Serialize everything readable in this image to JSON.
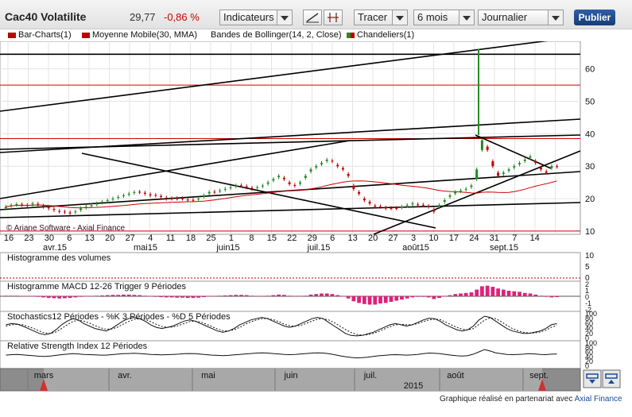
{
  "toolbar": {
    "title": "Cac40 Volatilite",
    "price": "29,77",
    "change": "-0,86 %",
    "indicators_label": "Indicateurs",
    "draw_label": "Tracer",
    "period_value": "6 mois",
    "frequency_value": "Journalier",
    "publish_label": "Publier",
    "line_tool_icon": "trend-line-icon",
    "bracket_tool_icon": "fork-tool-icon"
  },
  "legend": {
    "items": [
      {
        "label": "Bar-Charts(1)",
        "color": "#c00000"
      },
      {
        "label": "Moyenne Mobile(30, MMA)",
        "color": "#c00000"
      },
      {
        "label": "Bandes de Bollinger(14, 2, Close)",
        "color": ""
      },
      {
        "label": "Chandeliers(1)",
        "color": "#2a8a2a"
      }
    ]
  },
  "chart_data": [
    {
      "type": "bar",
      "panel": "main",
      "y_ticks": [
        "10",
        "20",
        "30",
        "40",
        "50",
        "60"
      ],
      "ylim": [
        9,
        68
      ],
      "x_ticks": [
        "16",
        "23",
        "30",
        "6",
        "13",
        "20",
        "27",
        "4",
        "11",
        "18",
        "25",
        "1",
        "8",
        "15",
        "22",
        "29",
        "6",
        "13",
        "20",
        "27",
        "3",
        "10",
        "17",
        "24",
        "31",
        "7",
        "14"
      ],
      "month_labels": [
        "avr.15",
        "mai15",
        "juin15",
        "juil.15",
        "août15",
        "sept.15"
      ],
      "watermark": "© Ariane Software - Axial Finance",
      "horizontal_levels": [
        64.5,
        55,
        38.5,
        10
      ],
      "close": [
        17.5,
        18,
        18.3,
        18,
        17.8,
        18.5,
        18.2,
        17.5,
        17,
        16.5,
        16,
        15.8,
        15.5,
        16,
        17,
        17.5,
        18,
        18.5,
        19,
        19.5,
        20,
        20.5,
        21,
        21.5,
        22,
        22,
        21.5,
        21,
        21,
        20.5,
        20,
        20,
        20,
        20,
        19.5,
        19.5,
        20,
        21,
        22,
        22,
        22.5,
        23,
        23.5,
        24,
        24,
        23.5,
        23,
        23.5,
        24,
        25,
        26,
        27,
        26,
        24.5,
        24,
        25,
        27,
        29,
        30,
        31,
        32,
        31.5,
        30,
        29,
        27,
        23,
        21.5,
        19.5,
        18.5,
        17.5,
        17.5,
        17,
        17,
        17,
        17.5,
        18,
        18.5,
        18,
        18,
        17.5,
        16,
        18,
        19.5,
        21,
        22,
        22.5,
        23,
        24,
        29,
        38,
        35,
        30,
        27,
        28,
        29,
        30,
        31,
        32,
        33,
        31,
        29,
        28,
        30,
        29.8
      ],
      "open": [
        17,
        17.8,
        18.1,
        18.2,
        18,
        18.2,
        18.4,
        17.8,
        17.3,
        16.8,
        16.2,
        16,
        15.7,
        15.8,
        16.5,
        17.2,
        17.7,
        18.2,
        18.8,
        19.3,
        19.8,
        20.3,
        20.8,
        21.3,
        21.8,
        22.1,
        21.8,
        21.3,
        21.1,
        20.8,
        20.3,
        20.1,
        20.1,
        20.1,
        19.7,
        19.6,
        19.8,
        20.6,
        21.6,
        22.1,
        22.3,
        22.8,
        23.3,
        23.8,
        24.1,
        23.8,
        23.3,
        23.3,
        23.8,
        24.6,
        25.6,
        26.6,
        26.4,
        25,
        24.2,
        24.6,
        26.4,
        28.4,
        29.6,
        30.6,
        31.6,
        31.7,
        30.4,
        29.4,
        27.6,
        24,
        22,
        20,
        19,
        17.8,
        17.6,
        17.2,
        17.1,
        17.1,
        17.3,
        17.8,
        18.3,
        18.2,
        18.1,
        17.7,
        16.6,
        17.4,
        19,
        20.6,
        21.6,
        22.3,
        22.8,
        23.6,
        26,
        35,
        36,
        31.5,
        28,
        27.6,
        28.6,
        29.6,
        30.6,
        31.6,
        32.6,
        31.6,
        29.6,
        28.4,
        29.4,
        30
      ]
    },
    {
      "type": "bar",
      "panel": "volume",
      "title": "Histogramme des volumes",
      "y_ticks": [
        "10",
        "5",
        "0"
      ],
      "values": []
    },
    {
      "type": "bar",
      "panel": "macd",
      "title": "Histogramme MACD 12-26   Trigger 9 Périodes",
      "y_ticks": [
        "2",
        "1",
        "0",
        "-1",
        "-2"
      ],
      "values": [
        0.1,
        0.1,
        0.1,
        0.05,
        0,
        -0.05,
        -0.1,
        -0.2,
        -0.3,
        -0.35,
        -0.4,
        -0.35,
        -0.3,
        -0.2,
        -0.1,
        0,
        0.05,
        0.1,
        0.15,
        0.2,
        0.25,
        0.25,
        0.3,
        0.3,
        0.25,
        0.2,
        0.1,
        0,
        -0.1,
        -0.15,
        -0.2,
        -0.2,
        -0.25,
        -0.25,
        -0.3,
        -0.3,
        -0.25,
        -0.15,
        -0.05,
        0.05,
        0.1,
        0.15,
        0.2,
        0.25,
        0.25,
        0.2,
        0.1,
        0.05,
        0.05,
        0.1,
        0.2,
        0.3,
        0.25,
        0.1,
        0,
        -0.05,
        0.1,
        0.3,
        0.4,
        0.5,
        0.5,
        0.4,
        0.2,
        0,
        -0.4,
        -0.9,
        -1.2,
        -1.4,
        -1.5,
        -1.5,
        -1.3,
        -1.2,
        -1,
        -0.8,
        -0.6,
        -0.4,
        -0.2,
        -0.1,
        -0.1,
        -0.2,
        -0.5,
        -0.3,
        0,
        0.2,
        0.4,
        0.5,
        0.6,
        0.7,
        1.2,
        1.8,
        1.9,
        1.7,
        1.4,
        1.2,
        1,
        0.9,
        0.8,
        0.6,
        0.5,
        0.3,
        0.1,
        -0.1,
        -0.2,
        -0.15
      ]
    },
    {
      "type": "line",
      "panel": "stochastics",
      "title": "Stochastics12 Périodes  - %K 3 Périodes  - %D 5 Périodes",
      "y_ticks": [
        "100",
        "80",
        "60",
        "40",
        "20",
        "0"
      ],
      "series": [
        {
          "name": "%K",
          "values": [
            55,
            60,
            58,
            50,
            40,
            30,
            20,
            15,
            20,
            35,
            55,
            70,
            80,
            75,
            60,
            50,
            40,
            35,
            30,
            40,
            55,
            70,
            80,
            85,
            80,
            70,
            55,
            45,
            40,
            45,
            50,
            60,
            70,
            75,
            70,
            60,
            50,
            40,
            30,
            25,
            30,
            40,
            55,
            65,
            75,
            80,
            85,
            80,
            70,
            60,
            50,
            45,
            50,
            60,
            70,
            80,
            85,
            80,
            65,
            50,
            35,
            20,
            12,
            10,
            12,
            18,
            25,
            35,
            45,
            55,
            60,
            55,
            50,
            55,
            65,
            75,
            82,
            80,
            70,
            55,
            45,
            35,
            30,
            35,
            50,
            75,
            90,
            85,
            70,
            55,
            40,
            30,
            25,
            20,
            20,
            25,
            30,
            40,
            55,
            60
          ]
        },
        {
          "name": "%D",
          "values": [
            50,
            55,
            57,
            55,
            48,
            40,
            30,
            22,
            20,
            26,
            40,
            55,
            68,
            74,
            70,
            62,
            52,
            43,
            37,
            38,
            45,
            57,
            68,
            77,
            80,
            77,
            68,
            57,
            48,
            45,
            46,
            52,
            60,
            68,
            70,
            66,
            58,
            48,
            38,
            31,
            30,
            35,
            45,
            57,
            67,
            75,
            80,
            81,
            76,
            68,
            58,
            51,
            49,
            53,
            61,
            70,
            78,
            80,
            75,
            64,
            50,
            36,
            24,
            16,
            13,
            15,
            20,
            28,
            38,
            47,
            55,
            57,
            55,
            55,
            60,
            68,
            75,
            78,
            76,
            66,
            55,
            45,
            37,
            34,
            40,
            57,
            74,
            83,
            80,
            68,
            53,
            40,
            31,
            25,
            22,
            22,
            26,
            33,
            45,
            53
          ]
        }
      ]
    },
    {
      "type": "line",
      "panel": "rsi",
      "title": "Relative Strength Index 12 Périodes",
      "y_ticks": [
        "100",
        "80",
        "60",
        "40",
        "20",
        "0"
      ],
      "series": [
        {
          "name": "RSI",
          "values": [
            48,
            50,
            51,
            49,
            47,
            45,
            43,
            42,
            44,
            47,
            50,
            52,
            54,
            53,
            51,
            50,
            49,
            48,
            48,
            50,
            52,
            54,
            55,
            56,
            55,
            53,
            51,
            50,
            49,
            50,
            51,
            52,
            54,
            55,
            54,
            52,
            50,
            48,
            47,
            46,
            47,
            49,
            51,
            53,
            55,
            57,
            58,
            57,
            55,
            53,
            51,
            50,
            51,
            53,
            55,
            57,
            58,
            57,
            54,
            50,
            45,
            41,
            38,
            36,
            37,
            39,
            42,
            45,
            47,
            49,
            50,
            49,
            48,
            49,
            51,
            54,
            57,
            56,
            54,
            51,
            48,
            45,
            44,
            46,
            52,
            62,
            72,
            66,
            58,
            54,
            51,
            50,
            51,
            52,
            54,
            53,
            51,
            50,
            52,
            53
          ]
        }
      ]
    },
    {
      "type": "area",
      "panel": "navigator",
      "x_ticks": [
        "mars",
        "avr.",
        "mai",
        "juin",
        "juil.",
        "août",
        "sept."
      ],
      "year_label": "2015"
    }
  ],
  "footer": {
    "text": "Graphique réalisé en partenariat avec",
    "partner": "Axial Finance"
  },
  "nav_buttons": {
    "maximize_icon": "maximize-icon",
    "minimize_icon": "minimize-icon"
  }
}
